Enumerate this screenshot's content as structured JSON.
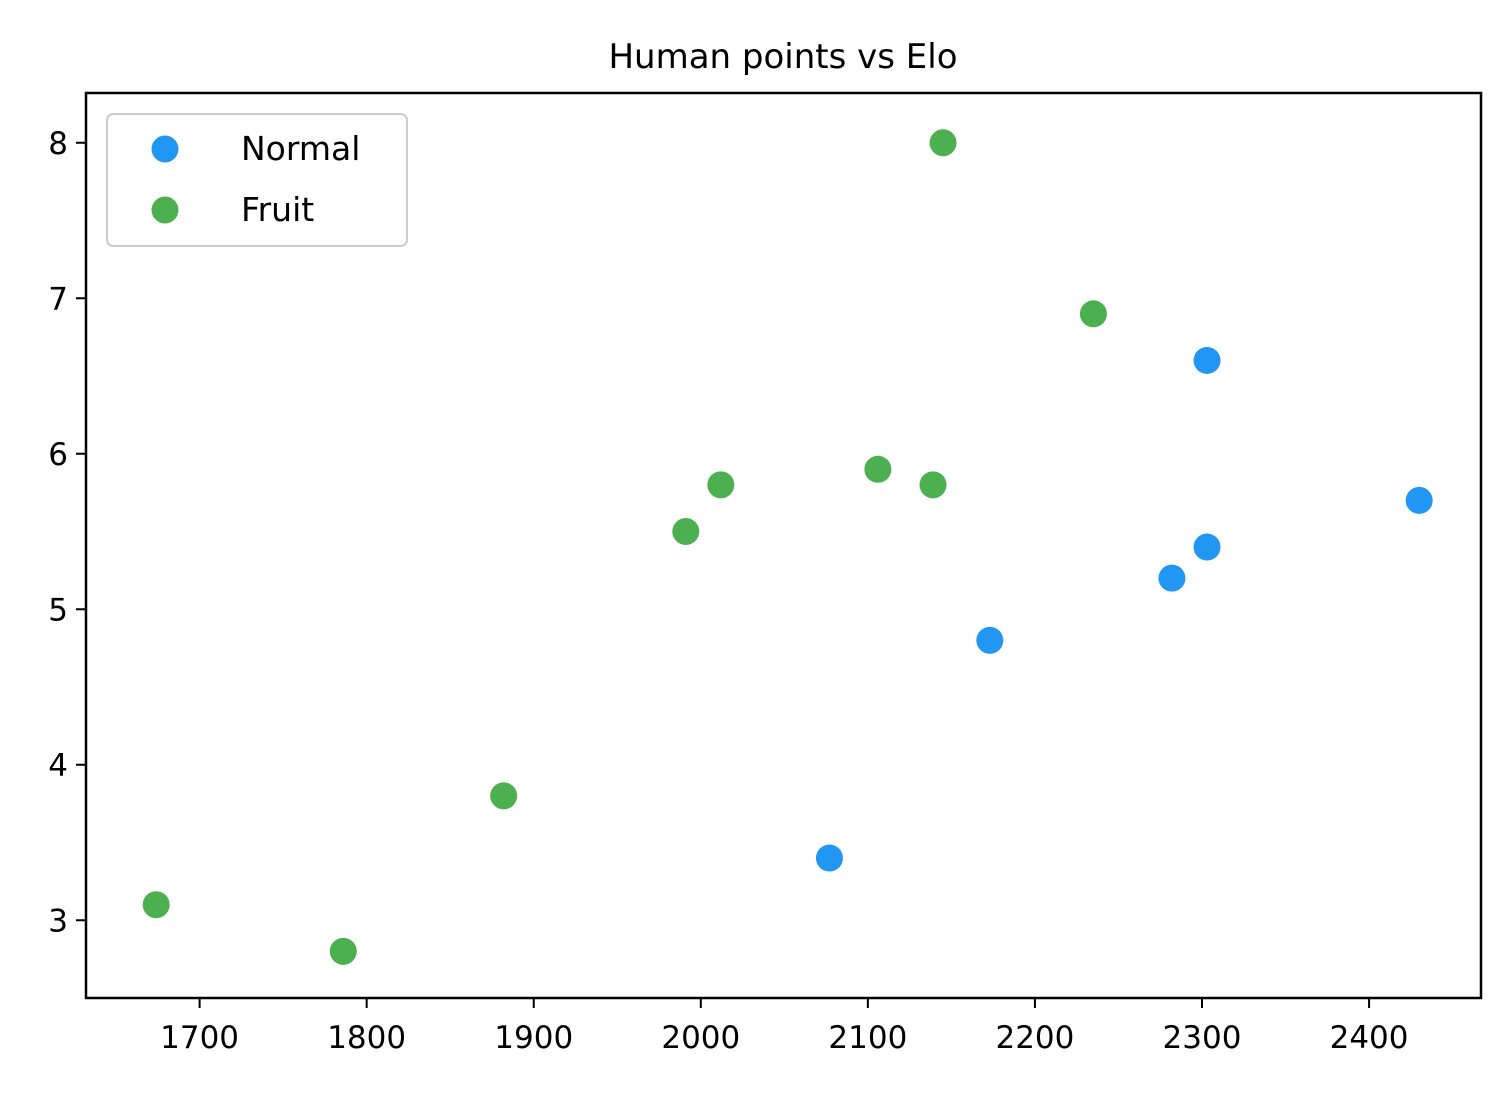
{
  "chart_data": {
    "type": "scatter",
    "title": "Human points vs Elo",
    "xlabel": "",
    "ylabel": "",
    "xlim": [
      1632,
      2467
    ],
    "ylim": [
      2.5,
      8.32
    ],
    "xticks": [
      1700,
      1800,
      1900,
      2000,
      2100,
      2200,
      2300,
      2400
    ],
    "yticks": [
      3,
      4,
      5,
      6,
      7,
      8
    ],
    "grid": false,
    "legend_position": "upper-left",
    "series": [
      {
        "name": "Normal",
        "color": "#2196f3",
        "points": [
          {
            "x": 2077,
            "y": 3.4
          },
          {
            "x": 2173,
            "y": 4.8
          },
          {
            "x": 2282,
            "y": 5.2
          },
          {
            "x": 2303,
            "y": 5.4
          },
          {
            "x": 2303,
            "y": 6.6
          },
          {
            "x": 2430,
            "y": 5.7
          }
        ]
      },
      {
        "name": "Fruit",
        "color": "#4caf50",
        "points": [
          {
            "x": 1674,
            "y": 3.1
          },
          {
            "x": 1786,
            "y": 2.8
          },
          {
            "x": 1882,
            "y": 3.8
          },
          {
            "x": 1991,
            "y": 5.5
          },
          {
            "x": 2012,
            "y": 5.8
          },
          {
            "x": 2106,
            "y": 5.9
          },
          {
            "x": 2139,
            "y": 5.8
          },
          {
            "x": 2145,
            "y": 8.0
          },
          {
            "x": 2235,
            "y": 6.9
          }
        ]
      }
    ]
  }
}
